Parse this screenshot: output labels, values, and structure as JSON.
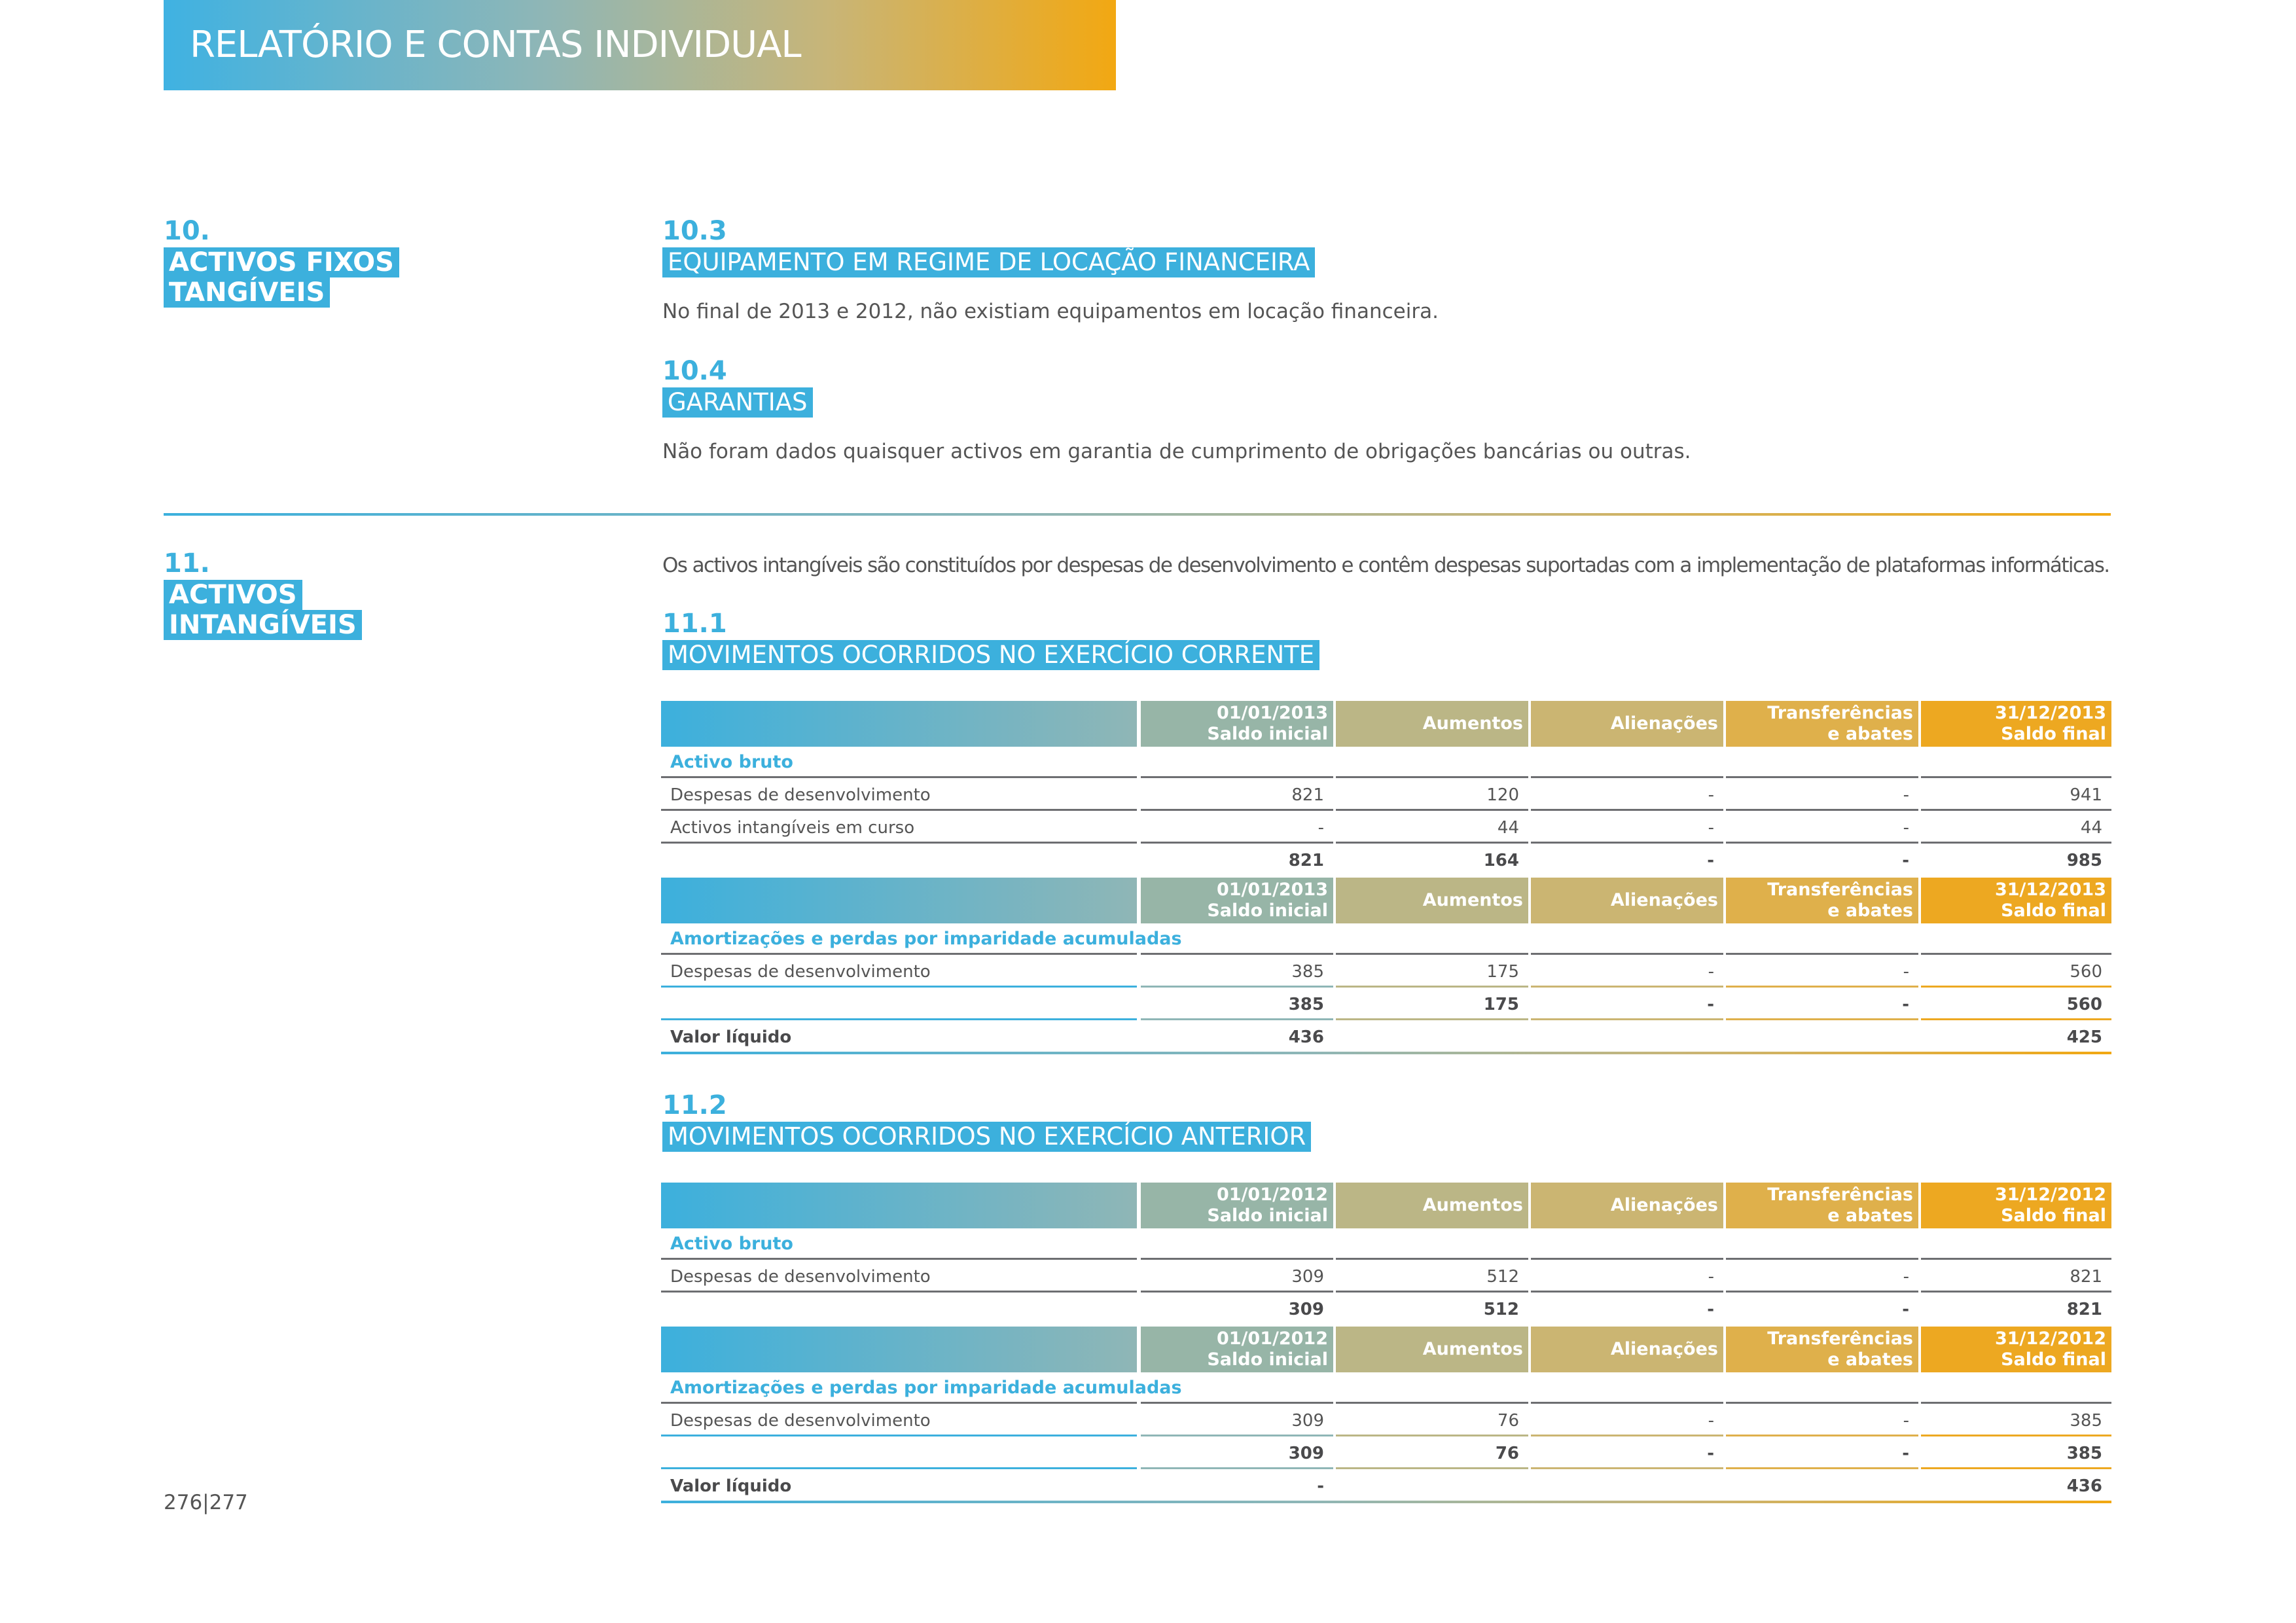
{
  "header": {
    "title": "RELATÓRIO E CONTAS INDIVIDUAL"
  },
  "section10": {
    "number": "10.",
    "title_line1": "ACTIVOS FIXOS",
    "title_line2": "TANGÍVEIS",
    "sub3": {
      "number": "10.3",
      "title": "EQUIPAMENTO EM REGIME DE LOCAÇÃO FINANCEIRA",
      "text": "No final de 2013 e 2012, não existiam equipamentos em locação financeira."
    },
    "sub4": {
      "number": "10.4",
      "title": "GARANTIAS",
      "text": "Não foram dados quaisquer activos em garantia de cumprimento de obrigações bancárias ou outras."
    }
  },
  "section11": {
    "number": "11.",
    "title_line1": "ACTIVOS",
    "title_line2": "INTANGÍVEIS",
    "intro": "Os activos intangíveis são constituídos por despesas de desenvolvimento e contêm despesas suportadas com a implementação de plataformas informáticas.",
    "sub1": {
      "number": "11.1",
      "title": "MOVIMENTOS OCORRIDOS NO EXERCÍCIO CORRENTE",
      "header": {
        "c1a": "01/01/2013",
        "c1b": "Saldo inicial",
        "c2": "Aumentos",
        "c3": "Alienações",
        "c4a": "Transferências",
        "c4b": "e abates",
        "c5a": "31/12/2013",
        "c5b": "Saldo final"
      },
      "gross_label": "Activo bruto",
      "gross_rows": [
        {
          "label": "Despesas de desenvolvimento",
          "c1": "821",
          "c2": "120",
          "c3": "-",
          "c4": "-",
          "c5": "941"
        },
        {
          "label": "Activos intangíveis em curso",
          "c1": "-",
          "c2": "44",
          "c3": "-",
          "c4": "-",
          "c5": "44"
        }
      ],
      "gross_total": {
        "c1": "821",
        "c2": "164",
        "c3": "-",
        "c4": "-",
        "c5": "985"
      },
      "amort_label": "Amortizações e perdas por imparidade acumuladas",
      "amort_rows": [
        {
          "label": "Despesas de desenvolvimento",
          "c1": "385",
          "c2": "175",
          "c3": "-",
          "c4": "-",
          "c5": "560"
        }
      ],
      "amort_total": {
        "c1": "385",
        "c2": "175",
        "c3": "-",
        "c4": "-",
        "c5": "560"
      },
      "net": {
        "label": "Valor líquido",
        "c1": "436",
        "c5": "425"
      }
    },
    "sub2": {
      "number": "11.2",
      "title": "MOVIMENTOS OCORRIDOS NO EXERCÍCIO ANTERIOR",
      "header": {
        "c1a": "01/01/2012",
        "c1b": "Saldo inicial",
        "c2": "Aumentos",
        "c3": "Alienações",
        "c4a": "Transferências",
        "c4b": "e abates",
        "c5a": "31/12/2012",
        "c5b": "Saldo final"
      },
      "gross_label": "Activo bruto",
      "gross_rows": [
        {
          "label": "Despesas de desenvolvimento",
          "c1": "309",
          "c2": "512",
          "c3": "-",
          "c4": "-",
          "c5": "821"
        }
      ],
      "gross_total": {
        "c1": "309",
        "c2": "512",
        "c3": "-",
        "c4": "-",
        "c5": "821"
      },
      "amort_label": "Amortizações e perdas por imparidade acumuladas",
      "amort_rows": [
        {
          "label": "Despesas de desenvolvimento",
          "c1": "309",
          "c2": "76",
          "c3": "-",
          "c4": "-",
          "c5": "385"
        }
      ],
      "amort_total": {
        "c1": "309",
        "c2": "76",
        "c3": "-",
        "c4": "-",
        "c5": "385"
      },
      "net": {
        "label": "Valor líquido",
        "c1": "-",
        "c5": "436"
      }
    }
  },
  "footer": {
    "page_numbers": "276|277"
  }
}
